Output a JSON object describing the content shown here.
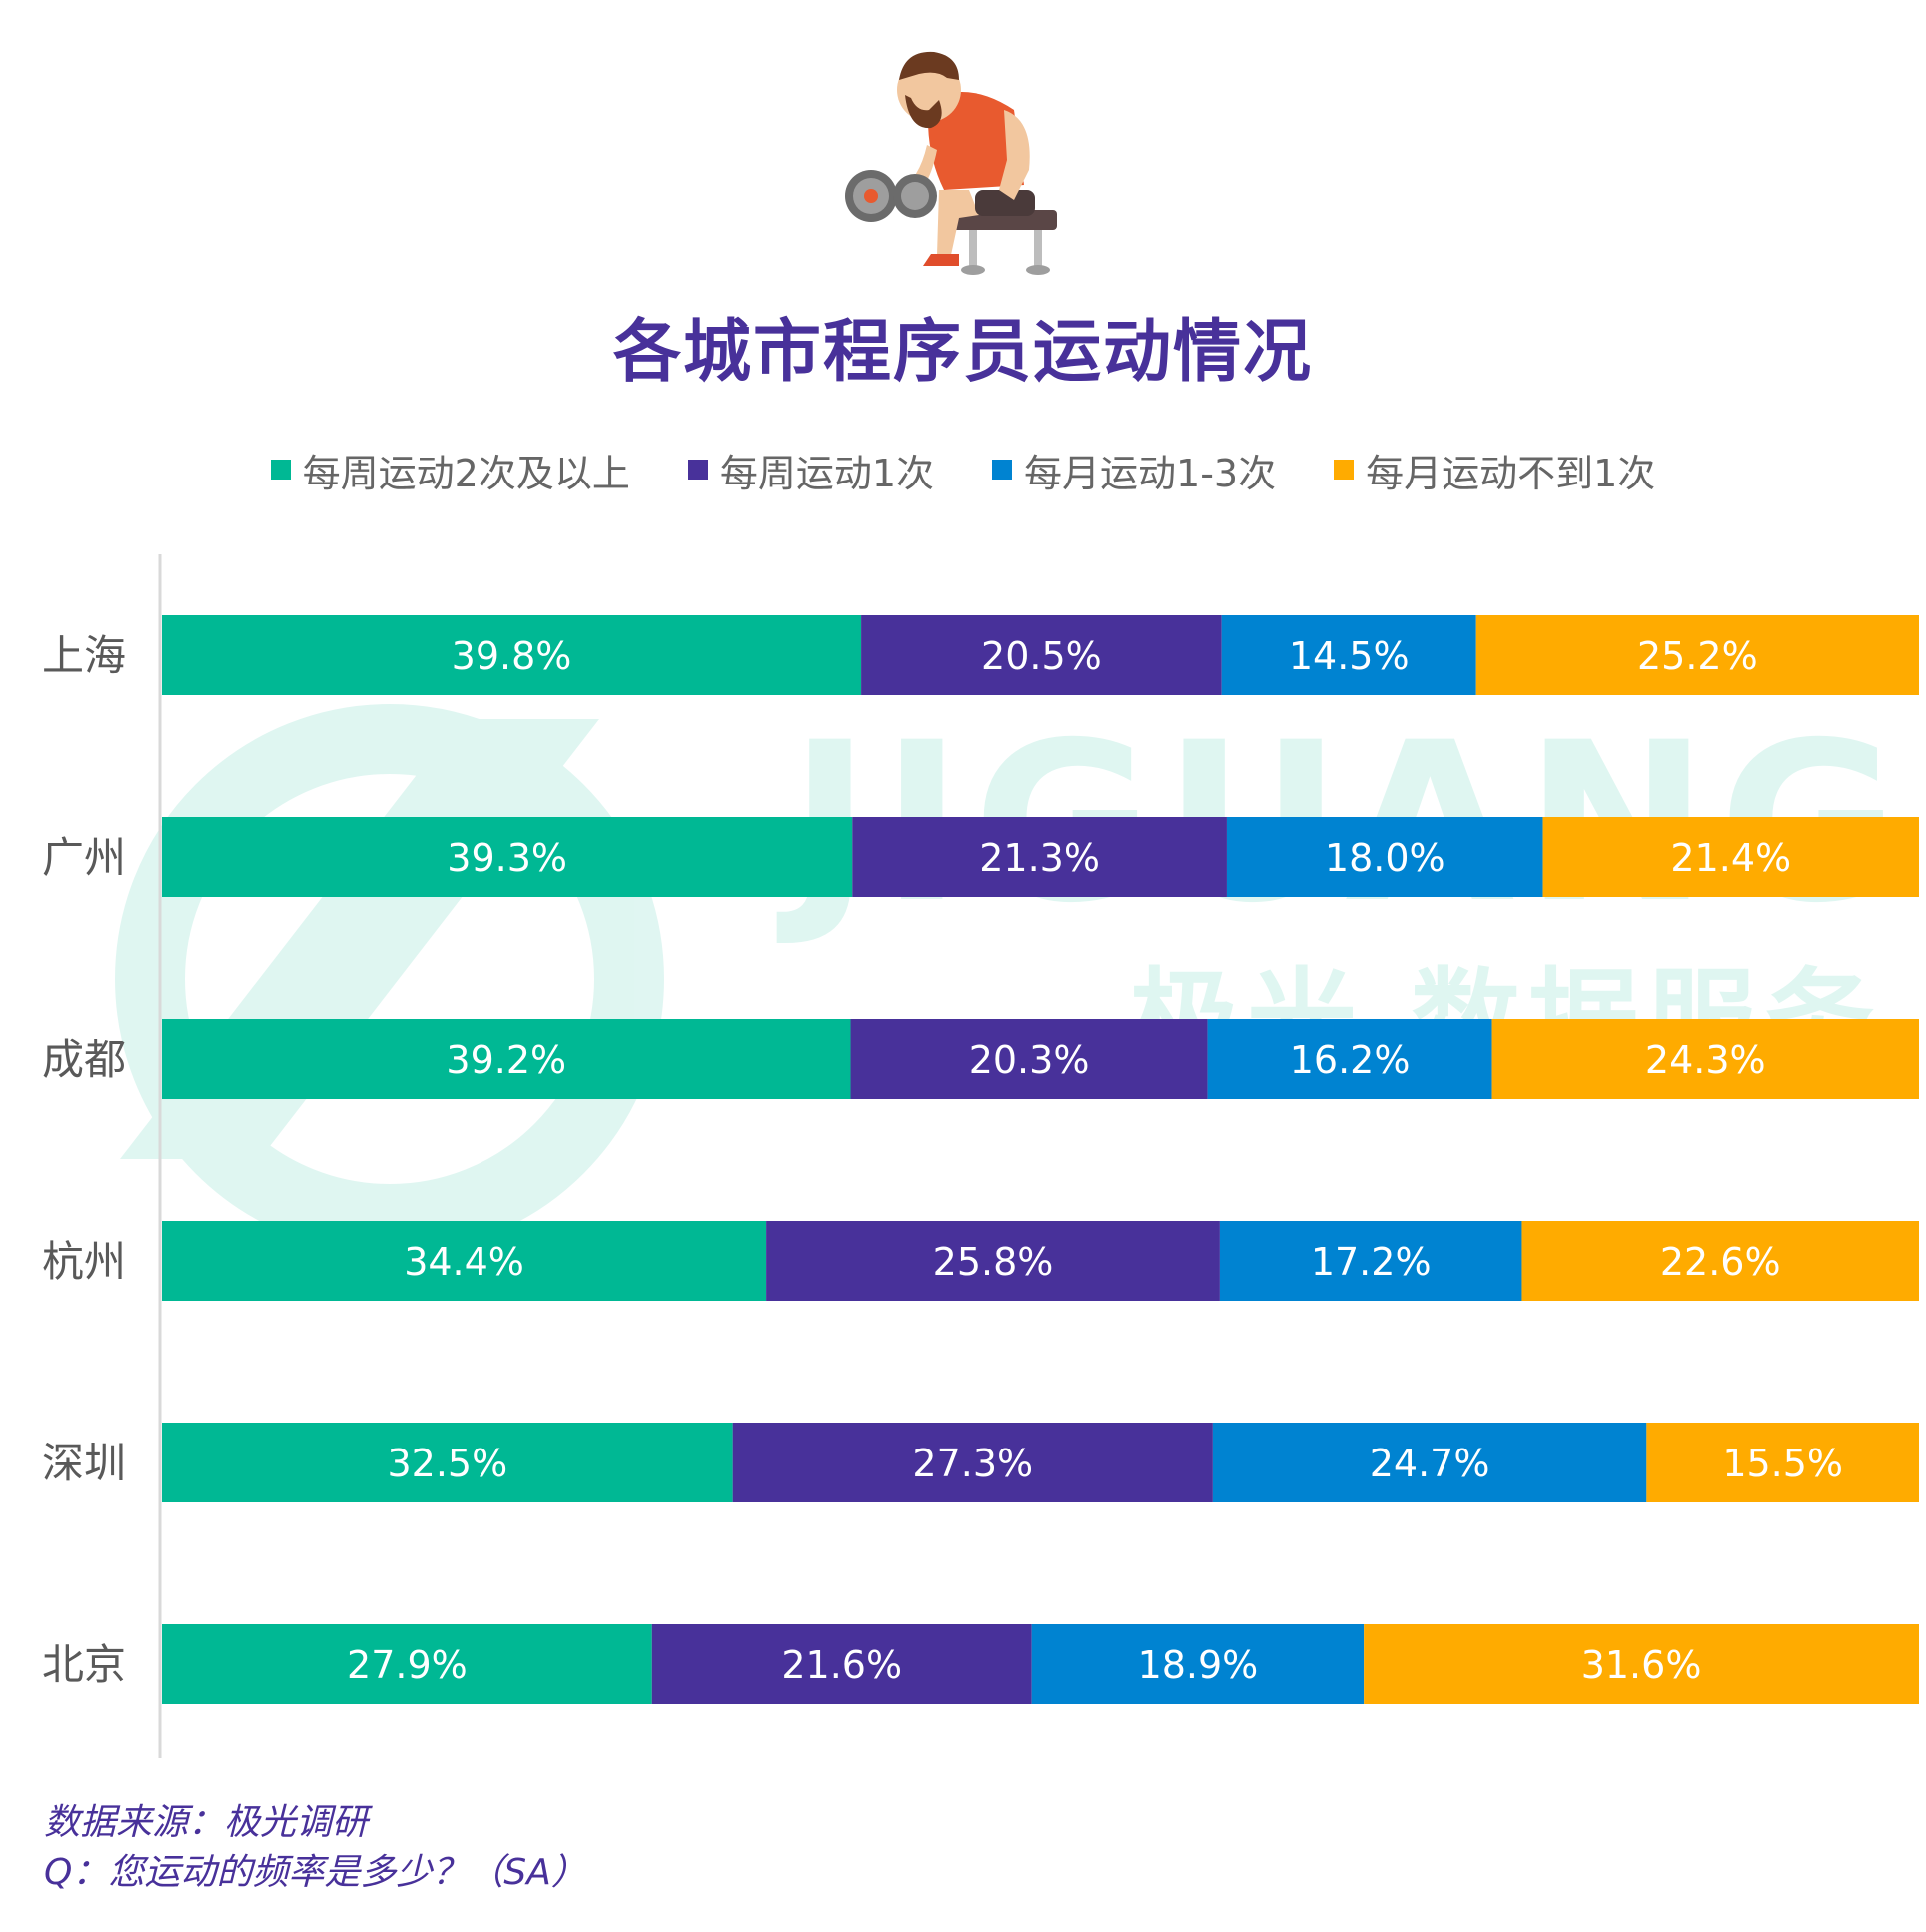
{
  "illustration": {
    "icon": "man-lifting-dumbbell-icon"
  },
  "chart_data": {
    "type": "bar",
    "orientation": "horizontal",
    "stacked": true,
    "title": "各城市程序员运动情况",
    "categories": [
      "上海",
      "广州",
      "成都",
      "杭州",
      "深圳",
      "北京"
    ],
    "series": [
      {
        "name": "每周运动2次及以上",
        "color": "#00b894",
        "values": [
          39.8,
          39.3,
          39.2,
          34.4,
          32.5,
          27.9
        ],
        "labels": [
          "39.8%",
          "39.3%",
          "39.2%",
          "34.4%",
          "32.5%",
          "27.9%"
        ]
      },
      {
        "name": "每周运动1次",
        "color": "#48319a",
        "values": [
          20.5,
          21.3,
          20.3,
          25.8,
          27.3,
          21.6
        ],
        "labels": [
          "20.5%",
          "21.3%",
          "20.3%",
          "25.8%",
          "27.3%",
          "21.6%"
        ]
      },
      {
        "name": "每月运动1-3次",
        "color": "#0083d1",
        "values": [
          14.5,
          18.0,
          16.2,
          17.2,
          24.7,
          18.9
        ],
        "labels": [
          "14.5%",
          "18.0%",
          "16.2%",
          "17.2%",
          "24.7%",
          "18.9%"
        ]
      },
      {
        "name": "每月运动不到1次",
        "color": "#ffab00",
        "values": [
          25.2,
          21.4,
          24.3,
          22.6,
          15.5,
          31.6
        ],
        "labels": [
          "25.2%",
          "21.4%",
          "24.3%",
          "22.6%",
          "15.5%",
          "31.6%"
        ]
      }
    ],
    "xlim": [
      0,
      100
    ],
    "legend_position": "top-center"
  },
  "source": {
    "line1": "数据来源：极光调研",
    "line2": "Q：您运动的频率是多少？（SA）"
  }
}
